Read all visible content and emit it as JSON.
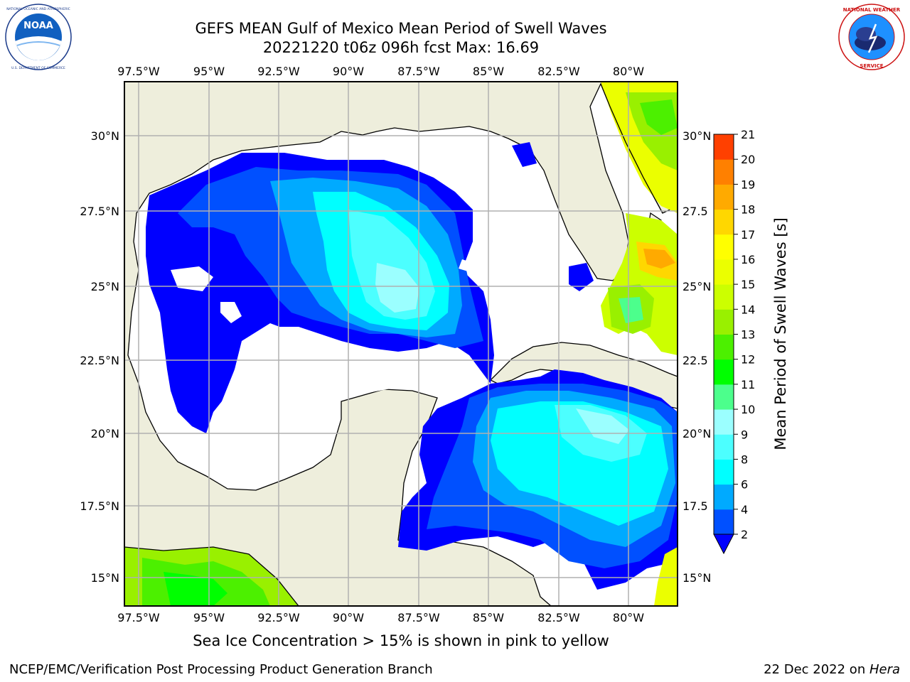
{
  "header": {
    "title_line1": "GEFS MEAN Gulf of Mexico Mean Period of Swell Waves",
    "title_line2": "20221220 t06z 096h fcst   Max: 16.69"
  },
  "logos": {
    "left": {
      "text": "NOAA",
      "icon": "noaa-logo-icon",
      "ring_text": "NATIONAL OCEANIC AND ATMOSPHERIC ADMINISTRATION · U.S. DEPARTMENT OF COMMERCE"
    },
    "right": {
      "icon": "nws-logo-icon",
      "ring_text": "NATIONAL WEATHER SERVICE"
    }
  },
  "map": {
    "lon_labels": [
      "97.5°W",
      "95°W",
      "92.5°W",
      "90°W",
      "87.5°W",
      "85°W",
      "82.5°W",
      "80°W"
    ],
    "lat_labels_left": [
      "30°N",
      "27.5°N",
      "25°N",
      "22.5°N",
      "20°N",
      "17.5°N",
      "15°N"
    ],
    "lat_labels_right": [
      "30°N",
      "27.5",
      "25°N",
      "22.5",
      "20°N",
      "17.5",
      "15°N"
    ],
    "colors": {
      "land": "#eeeedc",
      "ocean_missing": "#ffffff",
      "grid": "#b0b0b0"
    }
  },
  "colorbar": {
    "label": "Mean Period of Swell Waves [s]",
    "ticks": [
      "2",
      "4",
      "6",
      "8",
      "9",
      "10",
      "11",
      "12",
      "13",
      "14",
      "15",
      "16",
      "17",
      "18",
      "19",
      "20",
      "21"
    ],
    "colors": [
      "#0000ff",
      "#0050ff",
      "#00aaff",
      "#00ffff",
      "#4cffff",
      "#9bffff",
      "#4cff8c",
      "#00ff00",
      "#4cf000",
      "#99f000",
      "#ccff00",
      "#ebff00",
      "#ffff00",
      "#ffd700",
      "#ffaa00",
      "#ff8000",
      "#ff4000",
      "#ff1c00"
    ]
  },
  "caption": "Sea Ice Concentration > 15% is shown in pink to yellow",
  "footer": {
    "left": "NCEP/EMC/Verification Post Processing Product Generation Branch",
    "right_prefix": "22 Dec 2022 on ",
    "right_host": "Hera"
  }
}
